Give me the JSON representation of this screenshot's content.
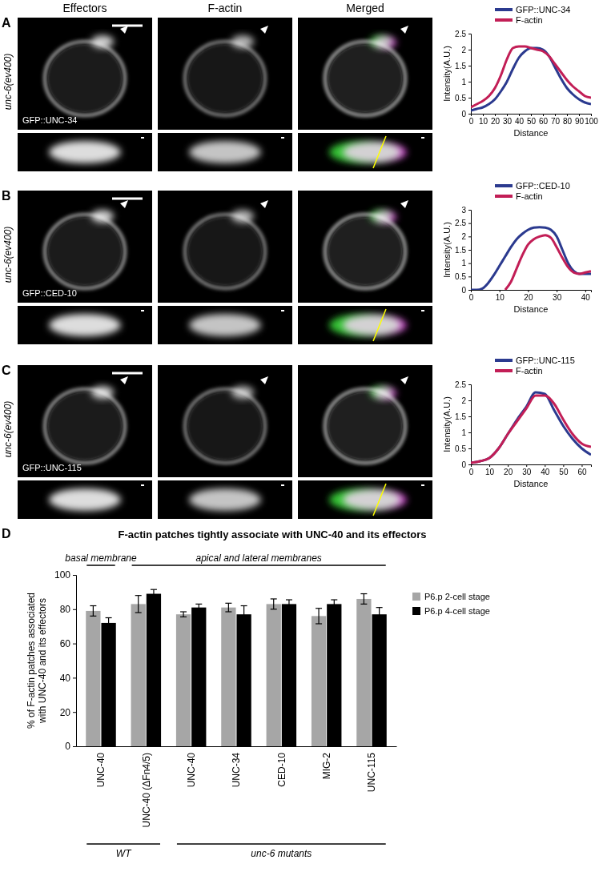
{
  "chart_data": [
    {
      "type": "line",
      "x": [
        0,
        5,
        10,
        15,
        20,
        25,
        30,
        35,
        40,
        45,
        50,
        55,
        60,
        65,
        70,
        75,
        80,
        85,
        90,
        95,
        100
      ],
      "series": [
        {
          "name": "GFP::UNC-34",
          "color": "#2b3a8f",
          "values": [
            0.1,
            0.15,
            0.2,
            0.3,
            0.45,
            0.7,
            1.0,
            1.4,
            1.75,
            1.95,
            2.05,
            2.05,
            2.0,
            1.8,
            1.45,
            1.1,
            0.8,
            0.6,
            0.45,
            0.35,
            0.3
          ]
        },
        {
          "name": "F-actin",
          "color": "#c21e56",
          "values": [
            0.2,
            0.3,
            0.4,
            0.55,
            0.8,
            1.2,
            1.7,
            2.05,
            2.1,
            2.1,
            2.05,
            2.0,
            1.95,
            1.8,
            1.55,
            1.3,
            1.05,
            0.85,
            0.7,
            0.55,
            0.5
          ]
        }
      ],
      "xlim": [
        0,
        100
      ],
      "xticks": [
        0,
        10,
        20,
        30,
        40,
        50,
        60,
        70,
        80,
        90,
        100
      ],
      "ylim": [
        0,
        2.5
      ],
      "yticks": [
        0,
        0.5,
        1,
        1.5,
        2,
        2.5
      ],
      "x_label": "Distance",
      "y_label": "Intensity(A.U.)",
      "legend": "top right"
    },
    {
      "type": "line",
      "x": [
        0,
        2,
        4,
        6,
        8,
        10,
        12,
        14,
        16,
        18,
        20,
        22,
        24,
        26,
        28,
        30,
        32,
        34,
        36,
        38,
        40,
        42
      ],
      "series": [
        {
          "name": "GFP::CED-10",
          "color": "#2b3a8f",
          "values": [
            0,
            0,
            0.05,
            0.25,
            0.55,
            0.9,
            1.25,
            1.6,
            1.9,
            2.1,
            2.25,
            2.33,
            2.35,
            2.33,
            2.25,
            2.0,
            1.5,
            1.0,
            0.7,
            0.6,
            0.6,
            0.6
          ]
        },
        {
          "name": "F-actin",
          "color": "#c21e56",
          "values": [
            null,
            null,
            null,
            null,
            null,
            null,
            0,
            0.3,
            0.8,
            1.3,
            1.7,
            1.9,
            2.0,
            2.05,
            1.95,
            1.6,
            1.2,
            0.85,
            0.65,
            0.6,
            0.65,
            0.7
          ]
        }
      ],
      "xlim": [
        0,
        42
      ],
      "xticks": [
        0,
        10,
        20,
        30,
        40
      ],
      "ylim": [
        0,
        3
      ],
      "yticks": [
        0,
        0.5,
        1,
        1.5,
        2,
        2.5,
        3
      ],
      "x_label": "Distance",
      "y_label": "Intensity(A.U.)",
      "legend": "top right"
    },
    {
      "type": "line",
      "x": [
        0,
        5,
        10,
        15,
        20,
        25,
        30,
        35,
        40,
        45,
        50,
        55,
        60,
        65
      ],
      "series": [
        {
          "name": "GFP::UNC-115",
          "color": "#2b3a8f",
          "values": [
            0.05,
            0.1,
            0.2,
            0.5,
            0.95,
            1.4,
            1.8,
            2.25,
            2.2,
            1.7,
            1.2,
            0.8,
            0.5,
            0.3
          ]
        },
        {
          "name": "F-actin",
          "color": "#c21e56",
          "values": [
            0.05,
            0.1,
            0.2,
            0.5,
            0.95,
            1.35,
            1.75,
            2.15,
            2.15,
            1.9,
            1.4,
            0.95,
            0.65,
            0.55
          ]
        }
      ],
      "xlim": [
        0,
        65
      ],
      "xticks": [
        0,
        10,
        20,
        30,
        40,
        50,
        60
      ],
      "ylim": [
        0,
        2.5
      ],
      "yticks": [
        0,
        0.5,
        1,
        1.5,
        2,
        2.5
      ],
      "x_label": "Distance",
      "y_label": "Intensity(A.U.)",
      "legend": "top right"
    },
    {
      "type": "bar",
      "title": "F-actin patches tightly associate with UNC-40 and its effectors",
      "categories": [
        "UNC-40",
        "UNC-40 (ΔFn4/5)",
        "UNC-40",
        "UNC-34",
        "CED-10",
        "MIG-2",
        "UNC-115"
      ],
      "series": [
        {
          "name": "P6.p 2-cell stage",
          "color": "#a6a6a6",
          "values": [
            79,
            83,
            77,
            81,
            83,
            76,
            86
          ],
          "errors": [
            3,
            5,
            1.5,
            2.5,
            3,
            4.5,
            3
          ]
        },
        {
          "name": "P6.p 4-cell stage",
          "color": "#000000",
          "values": [
            72,
            89,
            81,
            77,
            83,
            83,
            77
          ],
          "errors": [
            3,
            2.5,
            2,
            5,
            2.5,
            2.5,
            4
          ]
        }
      ],
      "ylim": [
        0,
        100
      ],
      "yticks": [
        0,
        20,
        40,
        60,
        80,
        100
      ],
      "y_label": "% of F-actin patches associated with UNC-40 and its effectors",
      "legend": "right",
      "annotations": [
        {
          "text": "basal membrane",
          "first": 0,
          "last": 0,
          "side": "top"
        },
        {
          "text": "apical and lateral membranes",
          "first": 1,
          "last": 6,
          "side": "top"
        },
        {
          "text": "WT",
          "first": 0,
          "last": 1,
          "side": "bottom"
        },
        {
          "text": "unc-6 mutants",
          "first": 2,
          "last": 6,
          "side": "bottom"
        }
      ]
    }
  ],
  "figure": {
    "panel_labels": [
      "A",
      "B",
      "C",
      "D"
    ],
    "column_headers": [
      "Effectors",
      "F-actin",
      "Merged"
    ],
    "rows": [
      {
        "genotype": "unc-6(ev400)",
        "label": "GFP::UNC-34"
      },
      {
        "genotype": "unc-6(ev400)",
        "label": "GFP::CED-10"
      },
      {
        "genotype": "unc-6(ev400)",
        "label": "GFP::UNC-115"
      }
    ]
  }
}
